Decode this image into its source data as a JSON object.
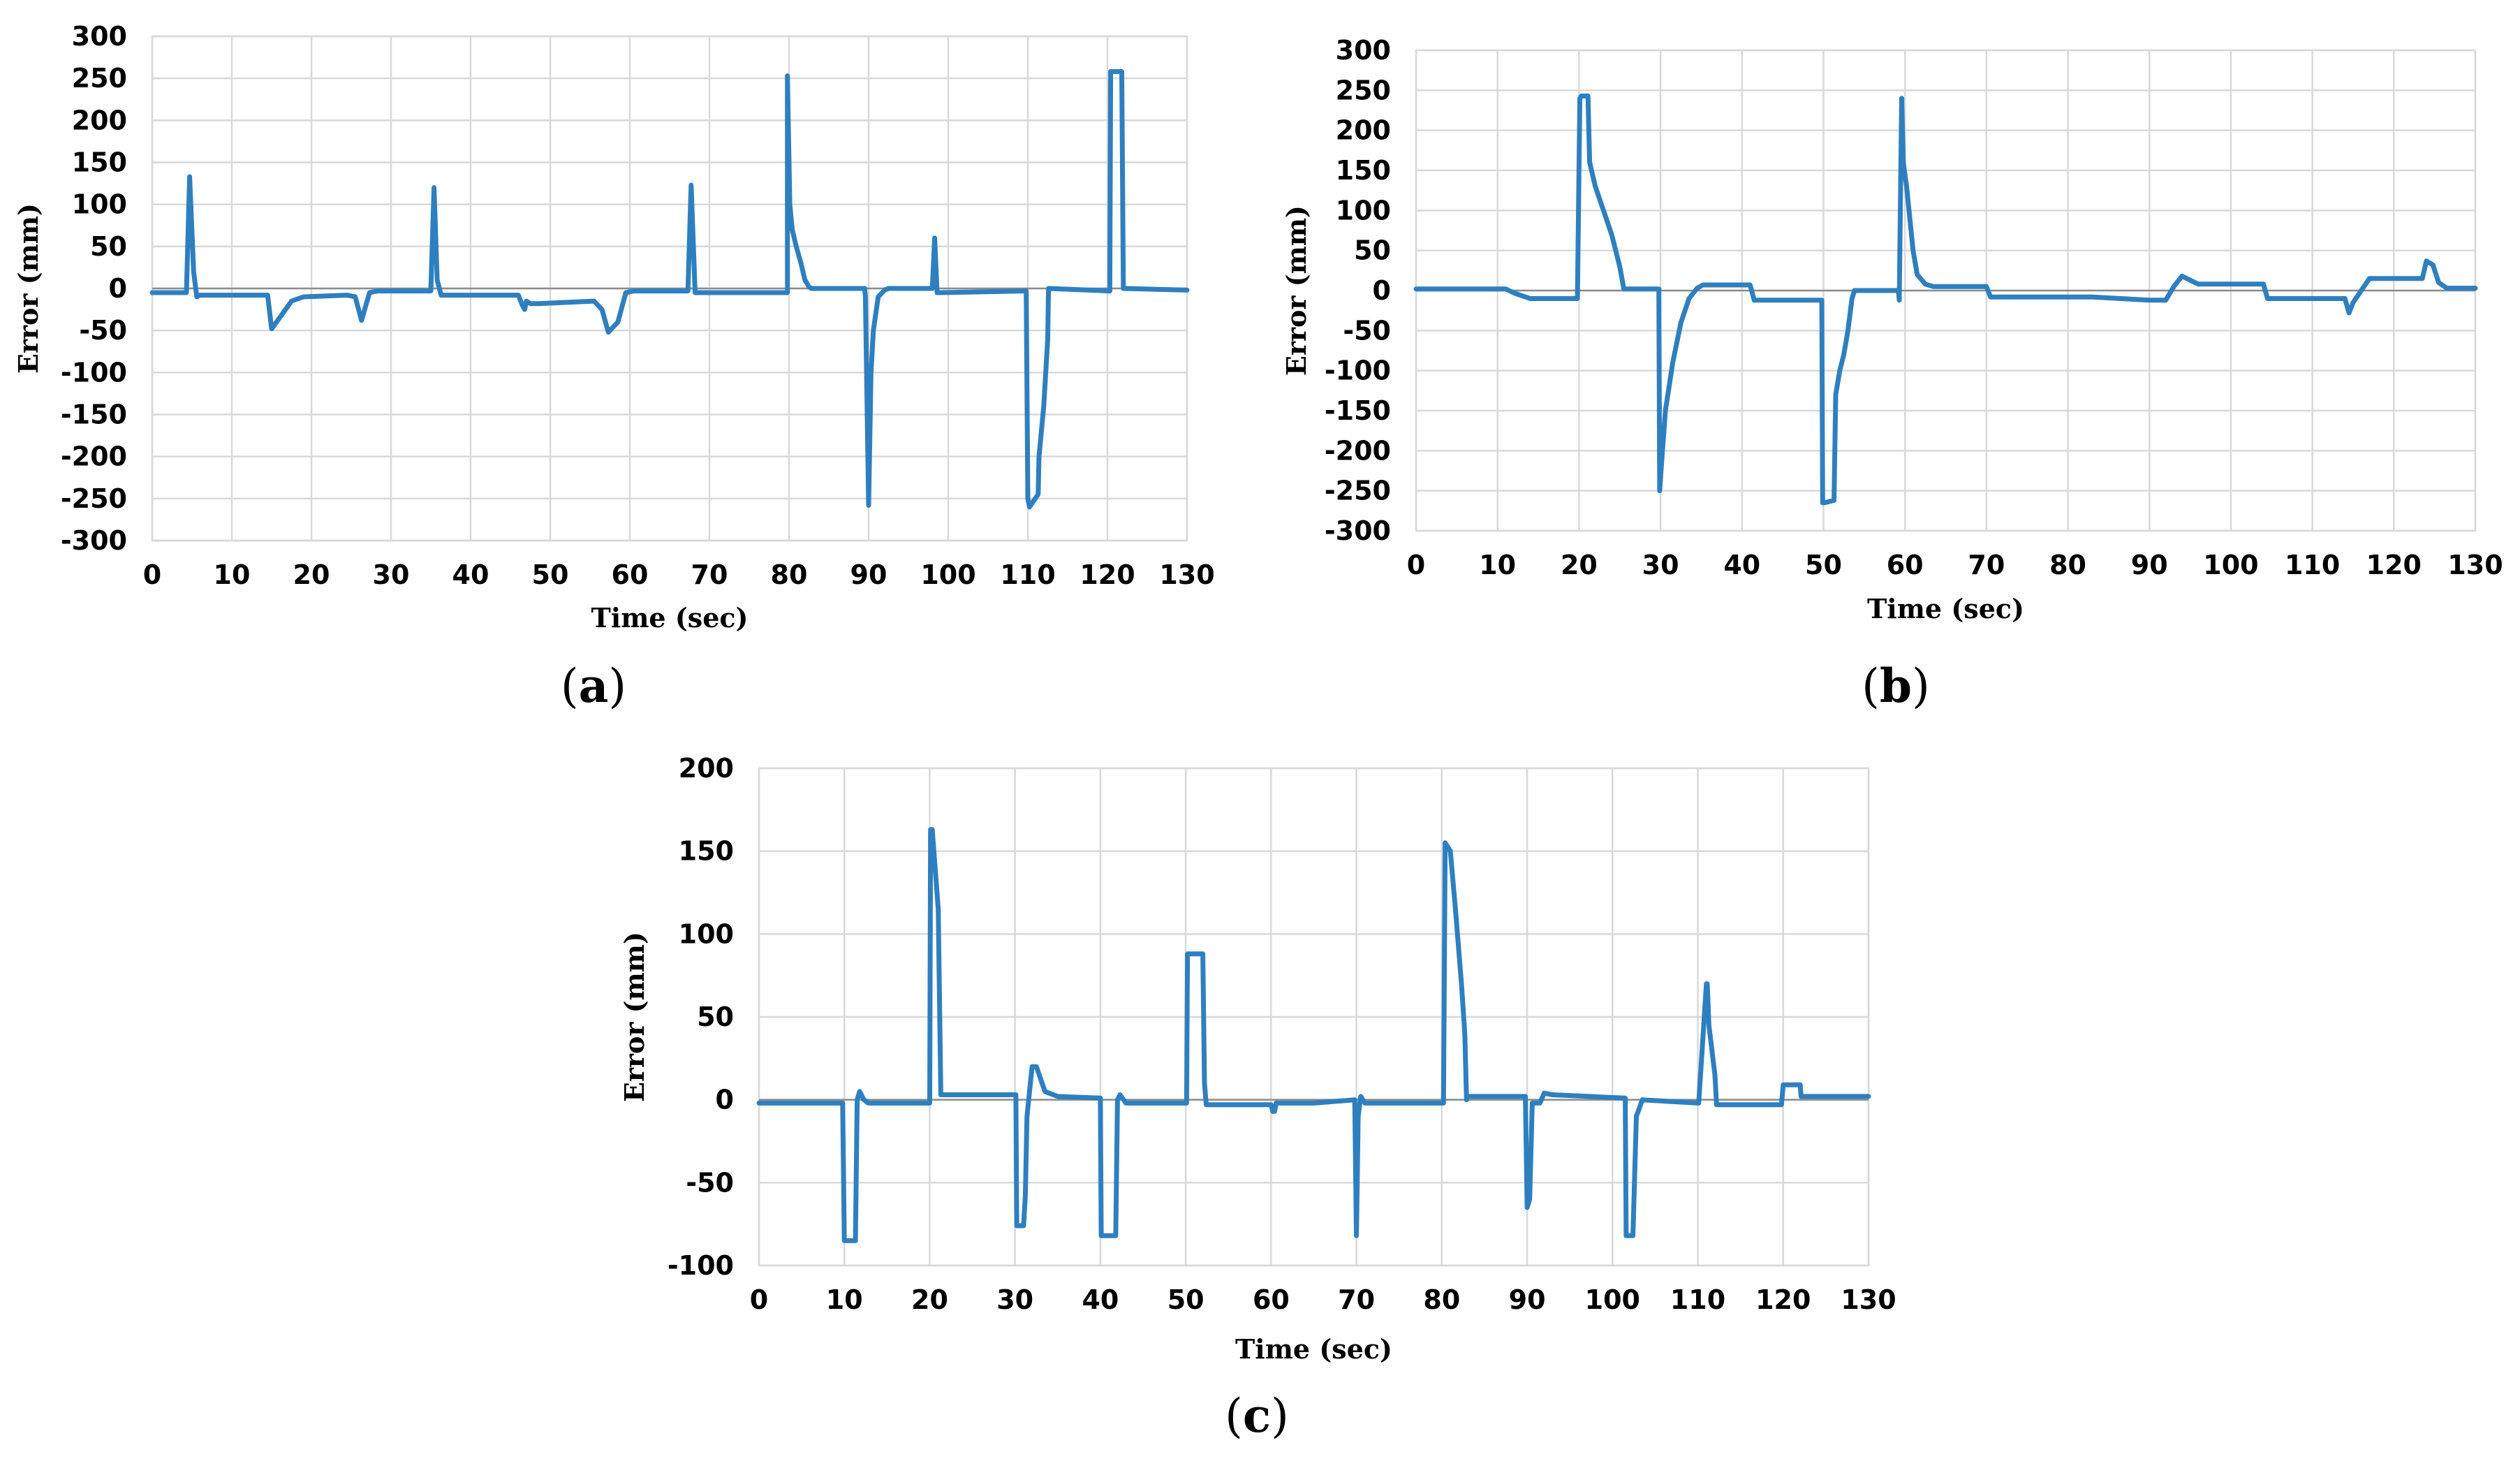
{
  "colors": {
    "series": "#2e7fbf",
    "grid": "#d9d9d9",
    "axis": "#8c8c8c"
  },
  "chart_data": [
    {
      "id": "a",
      "type": "line",
      "caption_open": "(",
      "caption_letter": "a",
      "caption_close": ")",
      "title": "",
      "xlabel": "Time (sec)",
      "ylabel": "Error (mm)",
      "xlim": [
        0,
        130
      ],
      "ylim": [
        -300,
        300
      ],
      "xticks": [
        0,
        10,
        20,
        30,
        40,
        50,
        60,
        70,
        80,
        90,
        100,
        110,
        120,
        130
      ],
      "yticks": [
        -300,
        -250,
        -200,
        -150,
        -100,
        -50,
        0,
        50,
        100,
        150,
        200,
        250,
        300
      ],
      "series": [
        {
          "name": "Error",
          "x": [
            0,
            4.3,
            4.7,
            5.2,
            5.6,
            6,
            14.5,
            15,
            16,
            17.5,
            19,
            24.5,
            25.5,
            26.3,
            27.3,
            28.3,
            35,
            35.4,
            35.8,
            36.3,
            36.8,
            46,
            46.5,
            46.8,
            47,
            47.5,
            48.5,
            55.5,
            56.5,
            57.3,
            58.5,
            59.5,
            60.5,
            67.3,
            67.7,
            68.2,
            68.7,
            79.8,
            79.8,
            80.1,
            80.4,
            80.9,
            81.5,
            82,
            82.5,
            82.8,
            89.5,
            89.6,
            90,
            90.3,
            90.6,
            91.2,
            92,
            92.5,
            93,
            98,
            98.3,
            98.6,
            99,
            109.5,
            109.8,
            110,
            110.2,
            111.3,
            111.4,
            112,
            112.5,
            112.6,
            120.3,
            120.4,
            121.8,
            122,
            130
          ],
          "y": [
            -5,
            -5,
            133,
            20,
            -10,
            -8,
            -8,
            -48,
            -35,
            -15,
            -10,
            -8,
            -10,
            -38,
            -5,
            -3,
            -3,
            120,
            10,
            -8,
            -8,
            -8,
            -20,
            -25,
            -15,
            -18,
            -18,
            -15,
            -25,
            -52,
            -40,
            -5,
            -3,
            -3,
            123,
            -5,
            -5,
            -5,
            253,
            100,
            70,
            50,
            30,
            10,
            2,
            0,
            0,
            -10,
            -258,
            -100,
            -50,
            -10,
            -2,
            0,
            0,
            0,
            60,
            -5,
            -5,
            -3,
            -3,
            -250,
            -260,
            -245,
            -200,
            -140,
            -60,
            0,
            -3,
            258,
            258,
            0,
            -2
          ]
        }
      ]
    },
    {
      "id": "b",
      "type": "line",
      "caption_open": "(",
      "caption_letter": "b",
      "caption_close": ")",
      "title": "",
      "xlabel": "Time (sec)",
      "ylabel": "Error (mm)",
      "xlim": [
        0,
        130
      ],
      "ylim": [
        -300,
        300
      ],
      "xticks": [
        0,
        10,
        20,
        30,
        40,
        50,
        60,
        70,
        80,
        90,
        100,
        110,
        120,
        130
      ],
      "yticks": [
        -300,
        -250,
        -200,
        -150,
        -100,
        -50,
        0,
        50,
        100,
        150,
        200,
        250,
        300
      ],
      "series": [
        {
          "name": "Error",
          "x": [
            0,
            11,
            12,
            14,
            19.8,
            20.1,
            20.3,
            21.1,
            21.3,
            22,
            23,
            24,
            25,
            25.5,
            29.8,
            29.9,
            30.1,
            30.6,
            31.5,
            32.5,
            33.5,
            34.5,
            35.2,
            41,
            41.5,
            49.8,
            49.9,
            50.1,
            51.3,
            51.5,
            52,
            52.5,
            53,
            53.5,
            53.8,
            59.2,
            59.3,
            59.6,
            59.8,
            60.2,
            61,
            61.5,
            62.5,
            63.5,
            65,
            70,
            70.5,
            83,
            90,
            92,
            93,
            94,
            96,
            104,
            104.5,
            114,
            114.5,
            115,
            116,
            117,
            123.5,
            124,
            124.8,
            125.5,
            126.5,
            130
          ],
          "y": [
            2,
            2,
            -3,
            -10,
            -10,
            240,
            243,
            243,
            160,
            130,
            100,
            70,
            30,
            2,
            2,
            -250,
            -220,
            -150,
            -90,
            -40,
            -10,
            3,
            7,
            7,
            -12,
            -12,
            -265,
            -265,
            -262,
            -130,
            -100,
            -80,
            -50,
            -10,
            0,
            0,
            -12,
            240,
            160,
            130,
            50,
            20,
            8,
            5,
            5,
            5,
            -8,
            -8,
            -12,
            -12,
            5,
            18,
            8,
            8,
            -10,
            -10,
            -28,
            -15,
            0,
            15,
            15,
            37,
            32,
            10,
            3,
            3
          ]
        }
      ]
    },
    {
      "id": "c",
      "type": "line",
      "caption_open": "(",
      "caption_letter": "c",
      "caption_close": ")",
      "title": "",
      "xlabel": "Time (sec)",
      "ylabel": "Error (mm)",
      "xlim": [
        0,
        130
      ],
      "ylim": [
        -100,
        200
      ],
      "xticks": [
        0,
        10,
        20,
        30,
        40,
        50,
        60,
        70,
        80,
        90,
        100,
        110,
        120,
        130
      ],
      "yticks": [
        -100,
        -50,
        0,
        50,
        100,
        150,
        200
      ],
      "series": [
        {
          "name": "Error",
          "x": [
            0,
            9.8,
            10,
            11.3,
            11.5,
            11.8,
            12.3,
            12.8,
            20,
            20.1,
            20.3,
            21,
            21.3,
            21.6,
            30.1,
            30.2,
            31,
            31.2,
            31.4,
            32,
            32.5,
            33.5,
            35,
            40,
            40.1,
            41.8,
            42,
            42.3,
            43,
            50.1,
            50.2,
            52,
            52.2,
            52.4,
            60,
            60.2,
            60.4,
            60.6,
            65,
            69.8,
            70,
            70.2,
            70.5,
            71,
            80.2,
            80.4,
            81,
            81.6,
            82.3,
            82.7,
            82.9,
            83,
            89.8,
            90,
            90.3,
            90.6,
            90.8,
            91.5,
            92,
            93,
            101.5,
            101.6,
            101.8,
            102.4,
            102.8,
            103.5,
            110,
            110.1,
            111,
            111.1,
            111.3,
            112,
            112.2,
            119.8,
            120,
            122,
            122.1,
            130
          ],
          "y": [
            -2,
            -2,
            -85,
            -85,
            0,
            5,
            0,
            -2,
            -2,
            163,
            163,
            115,
            3,
            3,
            3,
            -76,
            -76,
            -58,
            -10,
            20,
            20,
            5,
            2,
            1,
            -82,
            -82,
            0,
            3,
            -2,
            -2,
            88,
            88,
            10,
            -3,
            -3,
            -7,
            -7,
            -2,
            -2,
            0,
            -82,
            -10,
            2,
            -2,
            -2,
            155,
            150,
            115,
            70,
            40,
            0,
            2,
            2,
            -65,
            -60,
            -2,
            -2,
            -2,
            4,
            3,
            1,
            -82,
            -82,
            -82,
            -10,
            0,
            -2,
            -2,
            70,
            70,
            45,
            15,
            -3,
            -3,
            9,
            9,
            2,
            2
          ]
        }
      ]
    }
  ]
}
